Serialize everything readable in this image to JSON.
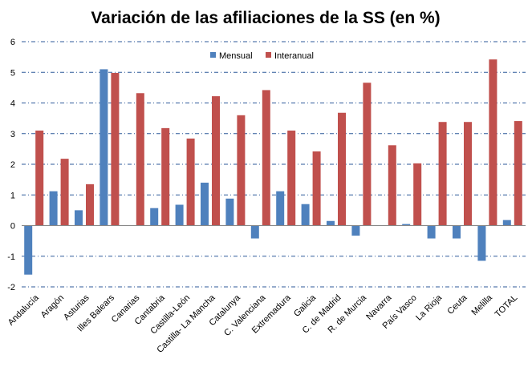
{
  "chart_data": {
    "type": "bar",
    "title": "Variación de las afiliaciones de la SS (en %)",
    "xlabel": "",
    "ylabel": "",
    "ylim": [
      -2,
      6
    ],
    "yticks": [
      6,
      5,
      4,
      3,
      2,
      1,
      0,
      -1,
      -2
    ],
    "grid": true,
    "legend_position": "top-center",
    "categories": [
      "Andalucía",
      "Aragón",
      "Asturias",
      "Illes Balears",
      "Canarias",
      "Cantabria",
      "Castilla-León",
      "Castilla- La Mancha",
      "Catalunya",
      "C. Valenciana",
      "Extremadura",
      "Galicia",
      "C. de Madrid",
      "R. de Murcia",
      "Navarra",
      "País Vasco",
      "La Rioja",
      "Ceuta",
      "Melilla",
      "TOTAL"
    ],
    "series": [
      {
        "name": "Mensual",
        "color": "#4F81BD",
        "values": [
          -1.6,
          1.12,
          0.5,
          5.1,
          0.0,
          0.57,
          0.68,
          1.4,
          0.88,
          -0.42,
          1.12,
          0.7,
          0.15,
          -0.33,
          0.0,
          0.05,
          -0.42,
          -0.42,
          -1.15,
          0.18
        ]
      },
      {
        "name": "Interanual",
        "color": "#C0504D",
        "values": [
          3.1,
          2.18,
          1.35,
          4.98,
          4.32,
          3.18,
          2.84,
          4.22,
          3.6,
          4.42,
          3.1,
          2.42,
          3.68,
          4.66,
          2.62,
          2.03,
          3.38,
          3.38,
          5.42,
          3.41
        ]
      }
    ]
  }
}
